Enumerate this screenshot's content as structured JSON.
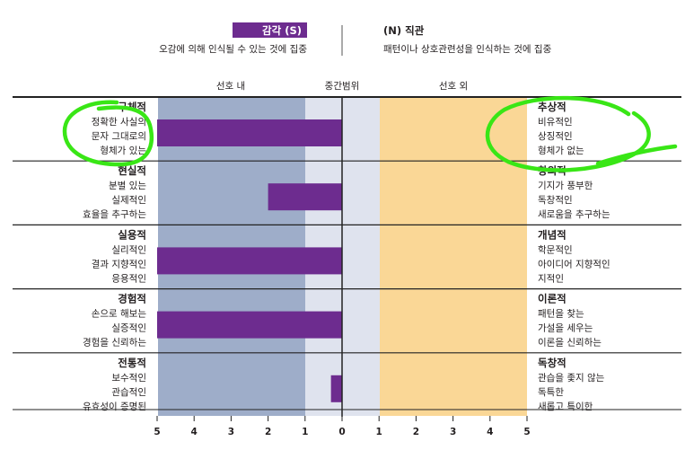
{
  "header": {
    "left_badge": "감각 (S)",
    "left_desc": "오감에 의해 인식될 수 있는 것에 집중",
    "right_title": "(N) 직관",
    "right_desc": "패턴이나 상호관련성을 인식하는 것에 집중"
  },
  "zones": [
    "선호 내",
    "중간범위",
    "선호 외"
  ],
  "colors": {
    "accent": "#6d2c8f",
    "zone_in": "#9eadc9",
    "zone_mid": "#dfe3ee",
    "zone_out": "#fad796",
    "annotation": "#39e616"
  },
  "chart_data": {
    "type": "bar",
    "orientation": "horizontal-diverging",
    "xlim": [
      -5,
      5
    ],
    "ticks": [
      "5",
      "4",
      "3",
      "2",
      "1",
      "0",
      "1",
      "2",
      "3",
      "4",
      "5"
    ],
    "rows": [
      {
        "left_title": "구체적",
        "left_items": [
          "정확한 사실의",
          "문자 그대로의",
          "형체가 있는"
        ],
        "right_title": "추상적",
        "right_items": [
          "비유적인",
          "상징적인",
          "형체가 없는"
        ],
        "value": -5
      },
      {
        "left_title": "현실적",
        "left_items": [
          "분별 있는",
          "실제적인",
          "효율을 추구하는"
        ],
        "right_title": "창의적",
        "right_items": [
          "기지가 풍부한",
          "독창적인",
          "새로움을 추구하는"
        ],
        "value": -2
      },
      {
        "left_title": "실용적",
        "left_items": [
          "실리적인",
          "결과 지향적인",
          "응용적인"
        ],
        "right_title": "개념적",
        "right_items": [
          "학문적인",
          "아이디어 지향적인",
          "지적인"
        ],
        "value": -5
      },
      {
        "left_title": "경험적",
        "left_items": [
          "손으로 해보는",
          "실증적인",
          "경험을 신뢰하는"
        ],
        "right_title": "이론적",
        "right_items": [
          "패턴을 찾는",
          "가설을 세우는",
          "이론을 신뢰하는"
        ],
        "value": -5
      },
      {
        "left_title": "전통적",
        "left_items": [
          "보수적인",
          "관습적인",
          "유효성이 증명된"
        ],
        "right_title": "독창적",
        "right_items": [
          "관습을 좇지 않는",
          "독특한",
          "새롭고 특이한"
        ],
        "value": -0.3
      }
    ]
  }
}
